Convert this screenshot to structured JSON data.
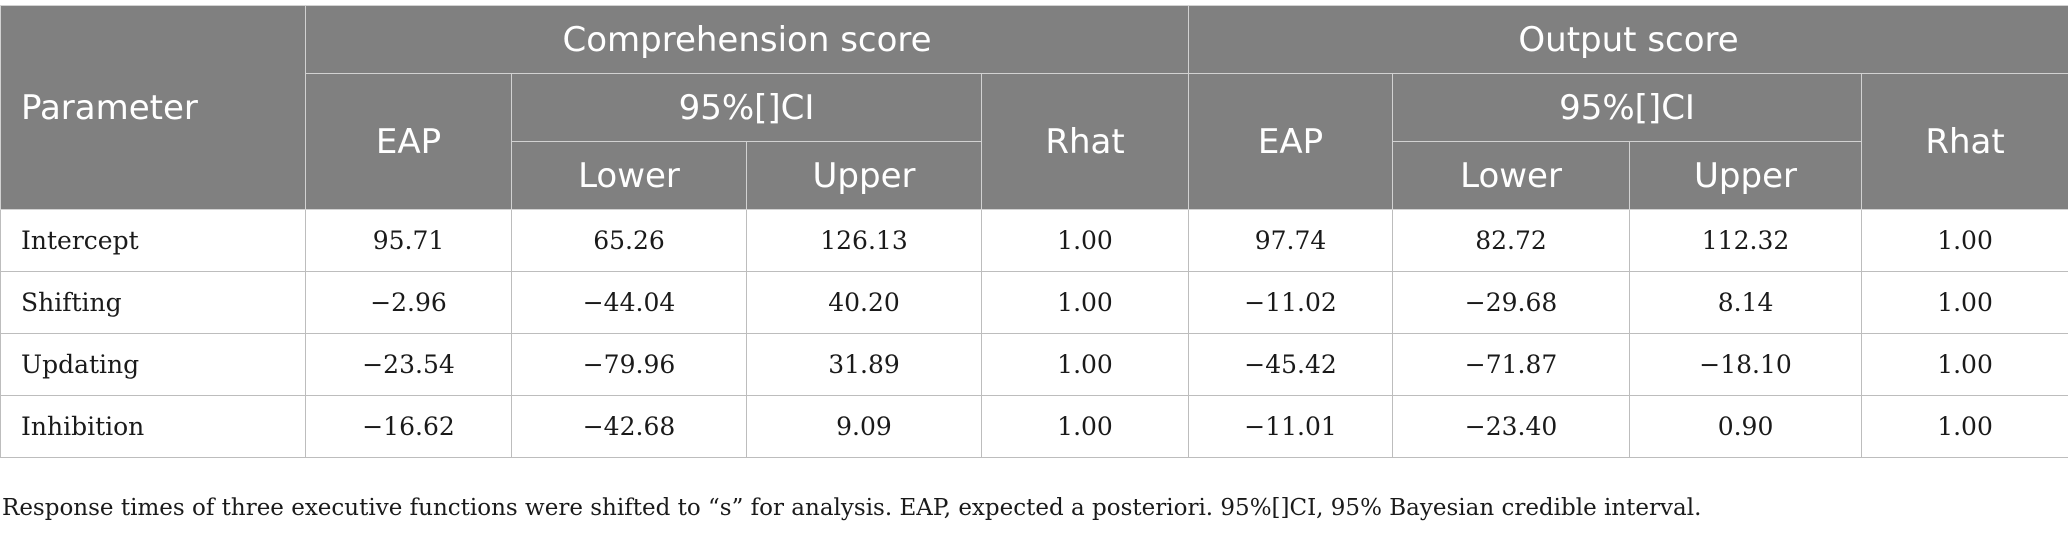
{
  "table": {
    "parameter_header": "Parameter",
    "group_headers": [
      "Comprehension score",
      "Output score"
    ],
    "eap_header": "EAP",
    "ci_header": "95%[]CI",
    "lower_header": "Lower",
    "upper_header": "Upper",
    "rhat_header": "Rhat",
    "rows": [
      {
        "label": "Intercept",
        "values": [
          "95.71",
          "65.26",
          "126.13",
          "1.00",
          "97.74",
          "82.72",
          "112.32",
          "1.00"
        ]
      },
      {
        "label": "Shifting",
        "values": [
          "−2.96",
          "−44.04",
          "40.20",
          "1.00",
          "−11.02",
          "−29.68",
          "8.14",
          "1.00"
        ]
      },
      {
        "label": "Updating",
        "values": [
          "−23.54",
          "−79.96",
          "31.89",
          "1.00",
          "−45.42",
          "−71.87",
          "−18.10",
          "1.00"
        ]
      },
      {
        "label": "Inhibition",
        "values": [
          "−16.62",
          "−42.68",
          "9.09",
          "1.00",
          "−11.01",
          "−23.40",
          "0.90",
          "1.00"
        ]
      }
    ]
  },
  "footnote": "Response times of three executive functions were shifted to “s” for analysis. EAP, expected a posteriori. 95%[]CI, 95% Bayesian credible interval."
}
